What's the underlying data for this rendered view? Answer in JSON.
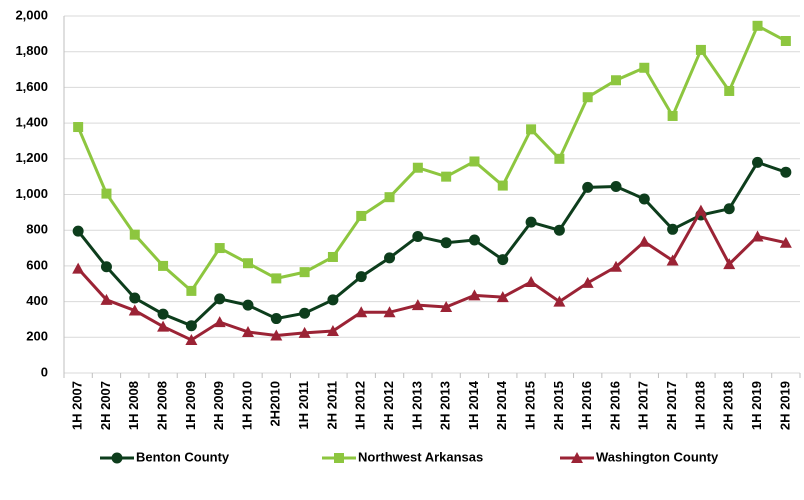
{
  "chart_data": {
    "type": "line",
    "categories": [
      "1H 2007",
      "2H 2007",
      "1H 2008",
      "2H 2008",
      "1H 2009",
      "2H 2009",
      "1H 2010",
      "2H2010",
      "1H 2011",
      "2H 2011",
      "1H 2012",
      "2H 2012",
      "1H 2013",
      "2H 2013",
      "1H 2014",
      "2H 2014",
      "1H 2015",
      "2H 2015",
      "1H 2016",
      "2H 2016",
      "1H 2017",
      "2H 2017",
      "1H 2018",
      "2H 2018",
      "1H 2019",
      "2H 2019"
    ],
    "series": [
      {
        "name": "Benton County",
        "color": "#0d3d1c",
        "marker": "circle",
        "values": [
          795,
          595,
          420,
          330,
          265,
          415,
          380,
          305,
          335,
          410,
          540,
          645,
          765,
          730,
          745,
          635,
          845,
          800,
          1040,
          1045,
          975,
          805,
          885,
          920,
          1180,
          1125
        ]
      },
      {
        "name": "Northwest Arkansas",
        "color": "#8dc63f",
        "marker": "square",
        "values": [
          1378,
          1005,
          775,
          600,
          460,
          700,
          615,
          530,
          565,
          650,
          880,
          985,
          1150,
          1100,
          1185,
          1050,
          1365,
          1200,
          1545,
          1640,
          1710,
          1440,
          1810,
          1580,
          1945,
          1860
        ]
      },
      {
        "name": "Washington County",
        "color": "#9b2335",
        "marker": "triangle",
        "values": [
          585,
          410,
          350,
          260,
          185,
          285,
          230,
          210,
          225,
          235,
          340,
          340,
          380,
          370,
          435,
          425,
          510,
          400,
          505,
          595,
          735,
          630,
          910,
          610,
          765,
          730
        ]
      }
    ],
    "ylim": [
      0,
      2000
    ],
    "yticks": [
      0,
      200,
      400,
      600,
      800,
      {
        "value": 1000,
        "label": "1,000"
      },
      {
        "value": 1200,
        "label": "1,200"
      },
      {
        "value": 1400,
        "label": "1,400"
      },
      {
        "value": 1600,
        "label": "1,600"
      },
      {
        "value": 1800,
        "label": "1,800"
      },
      {
        "value": 2000,
        "label": "2,000"
      }
    ],
    "grid": true
  }
}
